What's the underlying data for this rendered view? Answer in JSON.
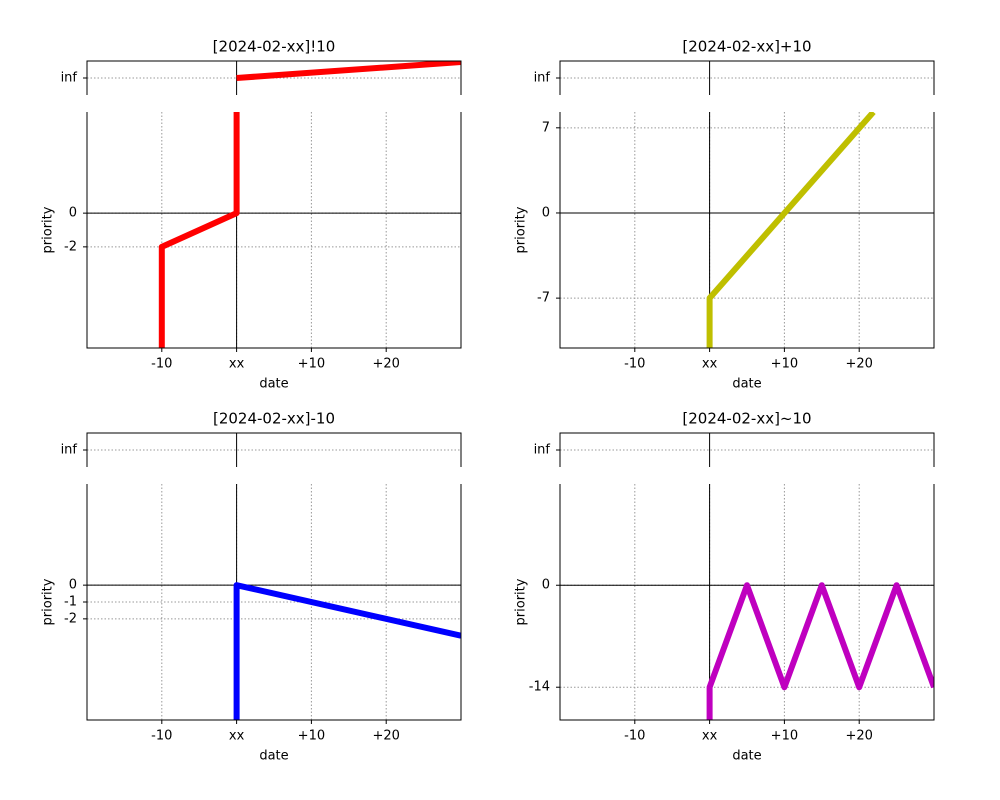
{
  "chart_data": [
    {
      "type": "line",
      "title": "[2024-02-xx]!10",
      "xlabel": "date",
      "ylabel": "priority",
      "color": "#ff0000",
      "grid": true,
      "xlim": [
        -20,
        30
      ],
      "xticks": [
        -10,
        {
          "value": 0,
          "label": "xx"
        },
        {
          "value": 10,
          "label": "+10"
        },
        {
          "value": 20,
          "label": "+20"
        }
      ],
      "ylim": [
        -8,
        6
      ],
      "yticks": [
        -2,
        0
      ],
      "top_ylim": [
        -1,
        1
      ],
      "top_yticks": [
        {
          "value": 0,
          "label": "inf"
        }
      ],
      "x": [
        -10,
        -10,
        0,
        0
      ],
      "values": [
        -8,
        -2,
        0,
        6
      ],
      "top_x": [
        0,
        30
      ],
      "top_values": [
        0,
        0.94
      ]
    },
    {
      "type": "line",
      "title": "[2024-02-xx]+10",
      "xlabel": "date",
      "ylabel": "priority",
      "color": "#bfbf00",
      "grid": true,
      "xlim": [
        -20,
        30
      ],
      "xticks": [
        -10,
        {
          "value": 0,
          "label": "xx"
        },
        {
          "value": 10,
          "label": "+10"
        },
        {
          "value": 20,
          "label": "+20"
        }
      ],
      "ylim": [
        -11.1,
        8.3
      ],
      "yticks": [
        -7,
        0,
        7
      ],
      "top_ylim": [
        -1,
        1
      ],
      "top_yticks": [
        {
          "value": 0,
          "label": "inf"
        }
      ],
      "x": [
        0,
        0,
        21.9
      ],
      "values": [
        -11.1,
        -7,
        8.3
      ]
    },
    {
      "type": "line",
      "title": "[2024-02-xx]-10",
      "xlabel": "date",
      "ylabel": "priority",
      "color": "#0000ff",
      "grid": true,
      "xlim": [
        -20,
        30
      ],
      "xticks": [
        -10,
        {
          "value": 0,
          "label": "xx"
        },
        {
          "value": 10,
          "label": "+10"
        },
        {
          "value": 20,
          "label": "+20"
        }
      ],
      "ylim": [
        -8,
        6
      ],
      "yticks": [
        -2,
        -1,
        0
      ],
      "top_ylim": [
        -1,
        1
      ],
      "top_yticks": [
        {
          "value": 0,
          "label": "inf"
        }
      ],
      "x": [
        0,
        0,
        30
      ],
      "values": [
        -8,
        0,
        -3
      ]
    },
    {
      "type": "line",
      "title": "[2024-02-xx]~10",
      "xlabel": "date",
      "ylabel": "priority",
      "color": "#bf00bf",
      "grid": true,
      "xlim": [
        -20,
        30
      ],
      "xticks": [
        -10,
        {
          "value": 0,
          "label": "xx"
        },
        {
          "value": 10,
          "label": "+10"
        },
        {
          "value": 20,
          "label": "+20"
        }
      ],
      "ylim": [
        -18.5,
        13.9
      ],
      "yticks": [
        -14,
        0
      ],
      "top_ylim": [
        -1,
        1
      ],
      "top_yticks": [
        {
          "value": 0,
          "label": "inf"
        }
      ],
      "x": [
        0,
        0,
        5,
        10,
        15,
        20,
        25,
        30
      ],
      "values": [
        -18.5,
        -14,
        0,
        -14,
        0,
        -14,
        0,
        -14
      ]
    }
  ]
}
